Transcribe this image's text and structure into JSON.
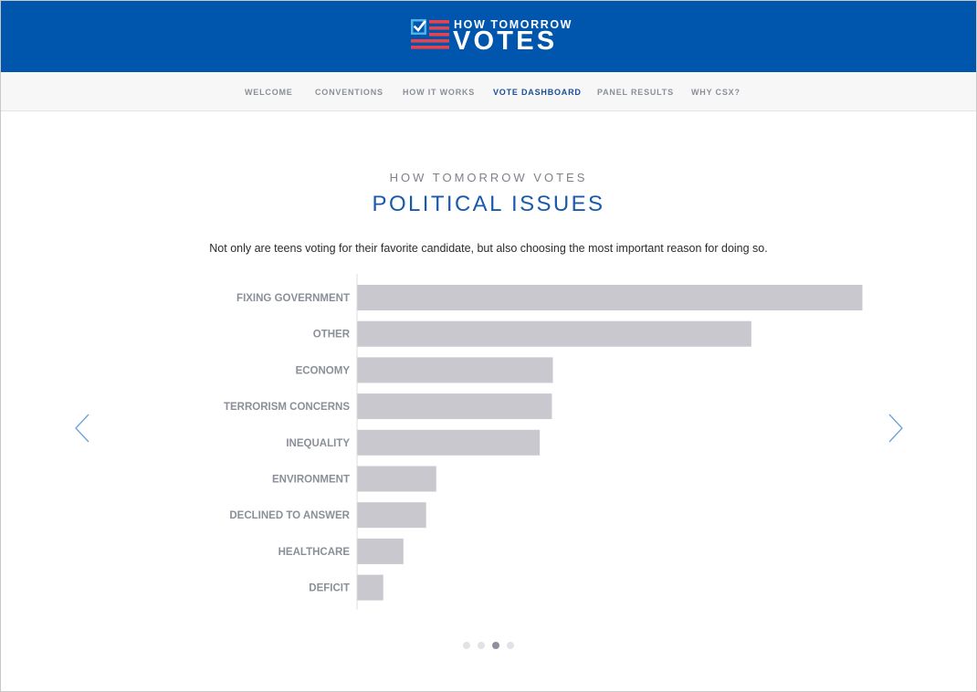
{
  "header": {
    "logo_small": "HOW TOMORROW",
    "logo_big": "VOTES",
    "background_color": "#0055ad"
  },
  "nav": {
    "items": [
      {
        "label": "WELCOME",
        "active": false
      },
      {
        "label": "CONVENTIONS",
        "active": false
      },
      {
        "label": "HOW IT WORKS",
        "active": false
      },
      {
        "label": "VOTE DASHBOARD",
        "active": true
      },
      {
        "label": "PANEL RESULTS",
        "active": false
      },
      {
        "label": "WHY CSX?",
        "active": false
      }
    ]
  },
  "main": {
    "kicker": "HOW TOMORROW VOTES",
    "title": "POLITICAL ISSUES",
    "description": "Not only are teens voting for their favorite candidate, but also choosing the most important reason for doing so."
  },
  "carousel": {
    "prev_icon": "chevron-left-icon",
    "next_icon": "chevron-right-icon",
    "dot_count": 4,
    "active_dot": 3
  },
  "chart_data": {
    "type": "bar",
    "orientation": "horizontal",
    "title": "",
    "xlabel": "",
    "ylabel": "",
    "categories": [
      "FIXING GOVERNMENT",
      "OTHER",
      "ECONOMY",
      "TERRORISM CONCERNS",
      "INEQUALITY",
      "ENVIRONMENT",
      "DECLINED TO ANSWER",
      "HEALTHCARE",
      "DEFICIT"
    ],
    "values": [
      100,
      78,
      38.7,
      38.5,
      36.1,
      15.6,
      13.6,
      9.1,
      5.1
    ],
    "xlim": [
      0,
      100
    ],
    "grid": false,
    "bar_color": "#c8c8ce"
  }
}
